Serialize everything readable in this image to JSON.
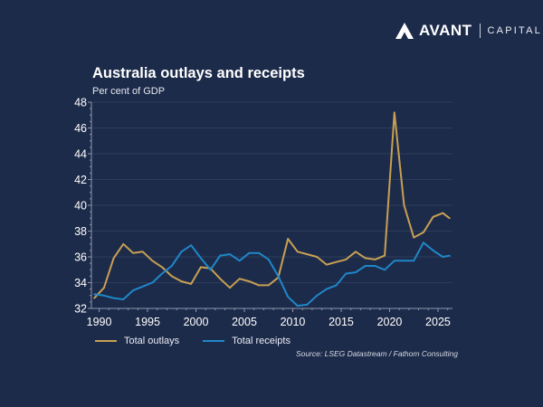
{
  "brand": {
    "name": "AVANT",
    "suffix": "CAPITAL",
    "icon": "avant-logo-icon"
  },
  "colors": {
    "background": "#1d2b4a",
    "outlays": "#c8a053",
    "receipts": "#1f87c9",
    "grid": "#2e3c5c",
    "axis": "#8d97ad"
  },
  "chart_data": {
    "type": "line",
    "title": "Australia outlays and receipts",
    "subtitle": "Per cent of GDP",
    "xlabel": "",
    "ylabel": "Per cent of GDP",
    "xlim": [
      1989.2,
      2026.5
    ],
    "ylim": [
      32,
      48
    ],
    "x_ticks": [
      1990,
      1995,
      2000,
      2005,
      2010,
      2015,
      2020,
      2025
    ],
    "y_ticks": [
      32,
      34,
      36,
      38,
      40,
      42,
      44,
      46,
      48
    ],
    "grid": true,
    "legend_position": "bottom-left",
    "x": [
      1989.5,
      1990.5,
      1991.5,
      1992.5,
      1993.5,
      1994.5,
      1995.5,
      1996.5,
      1997.5,
      1998.5,
      1999.5,
      2000.5,
      2001.5,
      2002.5,
      2003.5,
      2004.5,
      2005.5,
      2006.5,
      2007.5,
      2008.5,
      2009.5,
      2010.5,
      2011.5,
      2012.5,
      2013.5,
      2014.5,
      2015.5,
      2016.5,
      2017.5,
      2018.5,
      2019.5,
      2020.5,
      2021.5,
      2022.5,
      2023.5,
      2024.5,
      2025.5,
      2026.2
    ],
    "series": [
      {
        "name": "Total outlays",
        "color": "#c8a053",
        "values": [
          32.8,
          33.6,
          35.9,
          37.0,
          36.3,
          36.4,
          35.7,
          35.2,
          34.5,
          34.1,
          33.9,
          35.2,
          35.1,
          34.3,
          33.6,
          34.3,
          34.1,
          33.8,
          33.8,
          34.4,
          37.4,
          36.4,
          36.2,
          36.0,
          35.4,
          35.6,
          35.8,
          36.4,
          35.9,
          35.8,
          36.1,
          47.2,
          40.0,
          37.5,
          37.9,
          39.1,
          39.4,
          39.0
        ]
      },
      {
        "name": "Total receipts",
        "color": "#1f87c9",
        "values": [
          33.1,
          33.0,
          32.8,
          32.7,
          33.4,
          33.7,
          34.0,
          34.7,
          35.3,
          36.4,
          36.9,
          35.9,
          35.0,
          36.1,
          36.2,
          35.7,
          36.3,
          36.3,
          35.8,
          34.5,
          32.9,
          32.2,
          32.3,
          33.0,
          33.5,
          33.8,
          34.7,
          34.8,
          35.3,
          35.3,
          35.0,
          35.7,
          35.7,
          35.7,
          37.1,
          36.5,
          36.0,
          36.1
        ]
      }
    ],
    "source": "Source: LSEG Datastream / Fathom Consulting"
  }
}
